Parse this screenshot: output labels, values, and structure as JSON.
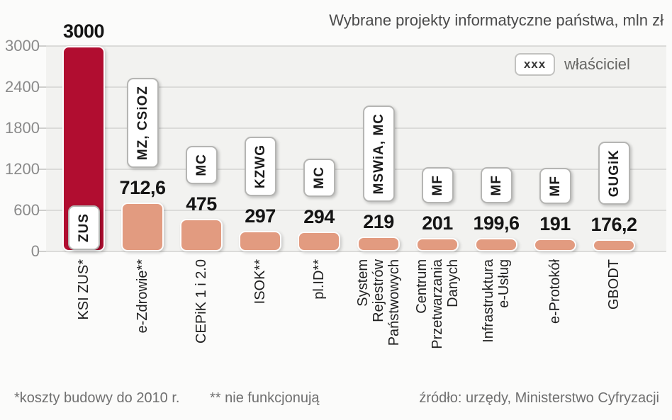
{
  "title": "Wybrane projekty informatyczne państwa, mln zł",
  "legend": {
    "sample": "xxx",
    "label": "właściciel"
  },
  "footnotes": {
    "note_costs": "*koszty budowy do 2010 r.",
    "note_defunct": "** nie funkcjonują",
    "source": "źródło: urzędy, Ministerstwo Cyfryzacji"
  },
  "chart_data": {
    "type": "bar",
    "title": "Wybrane projekty informatyczne państwa, mln zł",
    "unit": "mln zł",
    "xlabel": "",
    "ylabel": "mln zł",
    "ylim": [
      0,
      3000
    ],
    "yticks": [
      0,
      600,
      1200,
      1800,
      2400,
      3000
    ],
    "grid": true,
    "legend_position": "top-right",
    "legend_note": "boxed xxx above each bar = właściciel (owner institution)",
    "categories": [
      "KSI ZUS*",
      "e-Zdrowie**",
      "CEPiK 1 i 2.0",
      "ISOK**",
      "pl.ID**",
      "System Rejestrów Państwowych",
      "Centrum Przetwarzania Danych",
      "Infrastruktura e-Usług",
      "e-Protokół",
      "GBODT"
    ],
    "values": [
      3000,
      712.6,
      475,
      297,
      294,
      219,
      201,
      199.6,
      191,
      176.2
    ],
    "bars": [
      {
        "category_lines": [
          "KSI ZUS*"
        ],
        "value": 3000,
        "value_label": "3000",
        "owner": "ZUS",
        "highlight": true
      },
      {
        "category_lines": [
          "e-Zdrowie**"
        ],
        "value": 712.6,
        "value_label": "712,6",
        "owner": "MZ, CSiOZ",
        "highlight": false
      },
      {
        "category_lines": [
          "CEPiK 1 i 2.0"
        ],
        "value": 475,
        "value_label": "475",
        "owner": "MC",
        "highlight": false
      },
      {
        "category_lines": [
          "ISOK**"
        ],
        "value": 297,
        "value_label": "297",
        "owner": "KZWG",
        "highlight": false
      },
      {
        "category_lines": [
          "pl.ID**"
        ],
        "value": 294,
        "value_label": "294",
        "owner": "MC",
        "highlight": false
      },
      {
        "category_lines": [
          "System",
          "Rejestrów",
          "Państwowych"
        ],
        "value": 219,
        "value_label": "219",
        "owner": "MSWiA, MC",
        "highlight": false
      },
      {
        "category_lines": [
          "Centrum",
          "Przetwarzania",
          "Danych"
        ],
        "value": 201,
        "value_label": "201",
        "owner": "MF",
        "highlight": false
      },
      {
        "category_lines": [
          "Infrastruktura",
          "e-Usług"
        ],
        "value": 199.6,
        "value_label": "199,6",
        "owner": "MF",
        "highlight": false
      },
      {
        "category_lines": [
          "e-Protokół"
        ],
        "value": 191,
        "value_label": "191",
        "owner": "MF",
        "highlight": false
      },
      {
        "category_lines": [
          "GBODT"
        ],
        "value": 176.2,
        "value_label": "176,2",
        "owner": "GUGiK",
        "highlight": false
      }
    ],
    "colors": {
      "bar": "#e29b80",
      "highlight_bar": "#b10d30",
      "plot_background": "#f2f2f0",
      "page_background": "#fbfbfa",
      "gridline": "#dbdbd9",
      "axis_text": "#8a8a8a",
      "value_text": "#141414",
      "title_text": "#4b4b4b"
    }
  }
}
